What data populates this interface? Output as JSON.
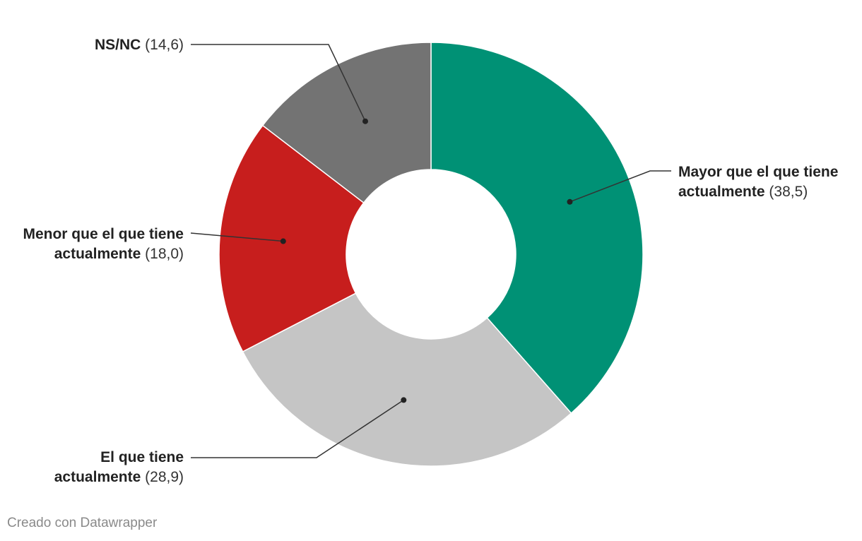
{
  "chart_data": {
    "type": "pie",
    "donut": true,
    "slices": [
      {
        "label_line1": "Mayor que el que tiene",
        "label_line2": "actualmente",
        "value": 38.5,
        "value_text": "(38,5)",
        "color": "#009175"
      },
      {
        "label_line1": "El que tiene",
        "label_line2": "actualmente",
        "value": 28.9,
        "value_text": "(28,9)",
        "color": "#c5c5c5"
      },
      {
        "label_line1": "Menor que el que tiene",
        "label_line2": "actualmente",
        "value": 18.0,
        "value_text": "(18,0)",
        "color": "#c71e1d"
      },
      {
        "label_line1": "NS/NC",
        "label_line2": "",
        "value": 14.6,
        "value_text": "(14,6)",
        "color": "#737373"
      }
    ]
  },
  "footer": "Creado con Datawrapper"
}
